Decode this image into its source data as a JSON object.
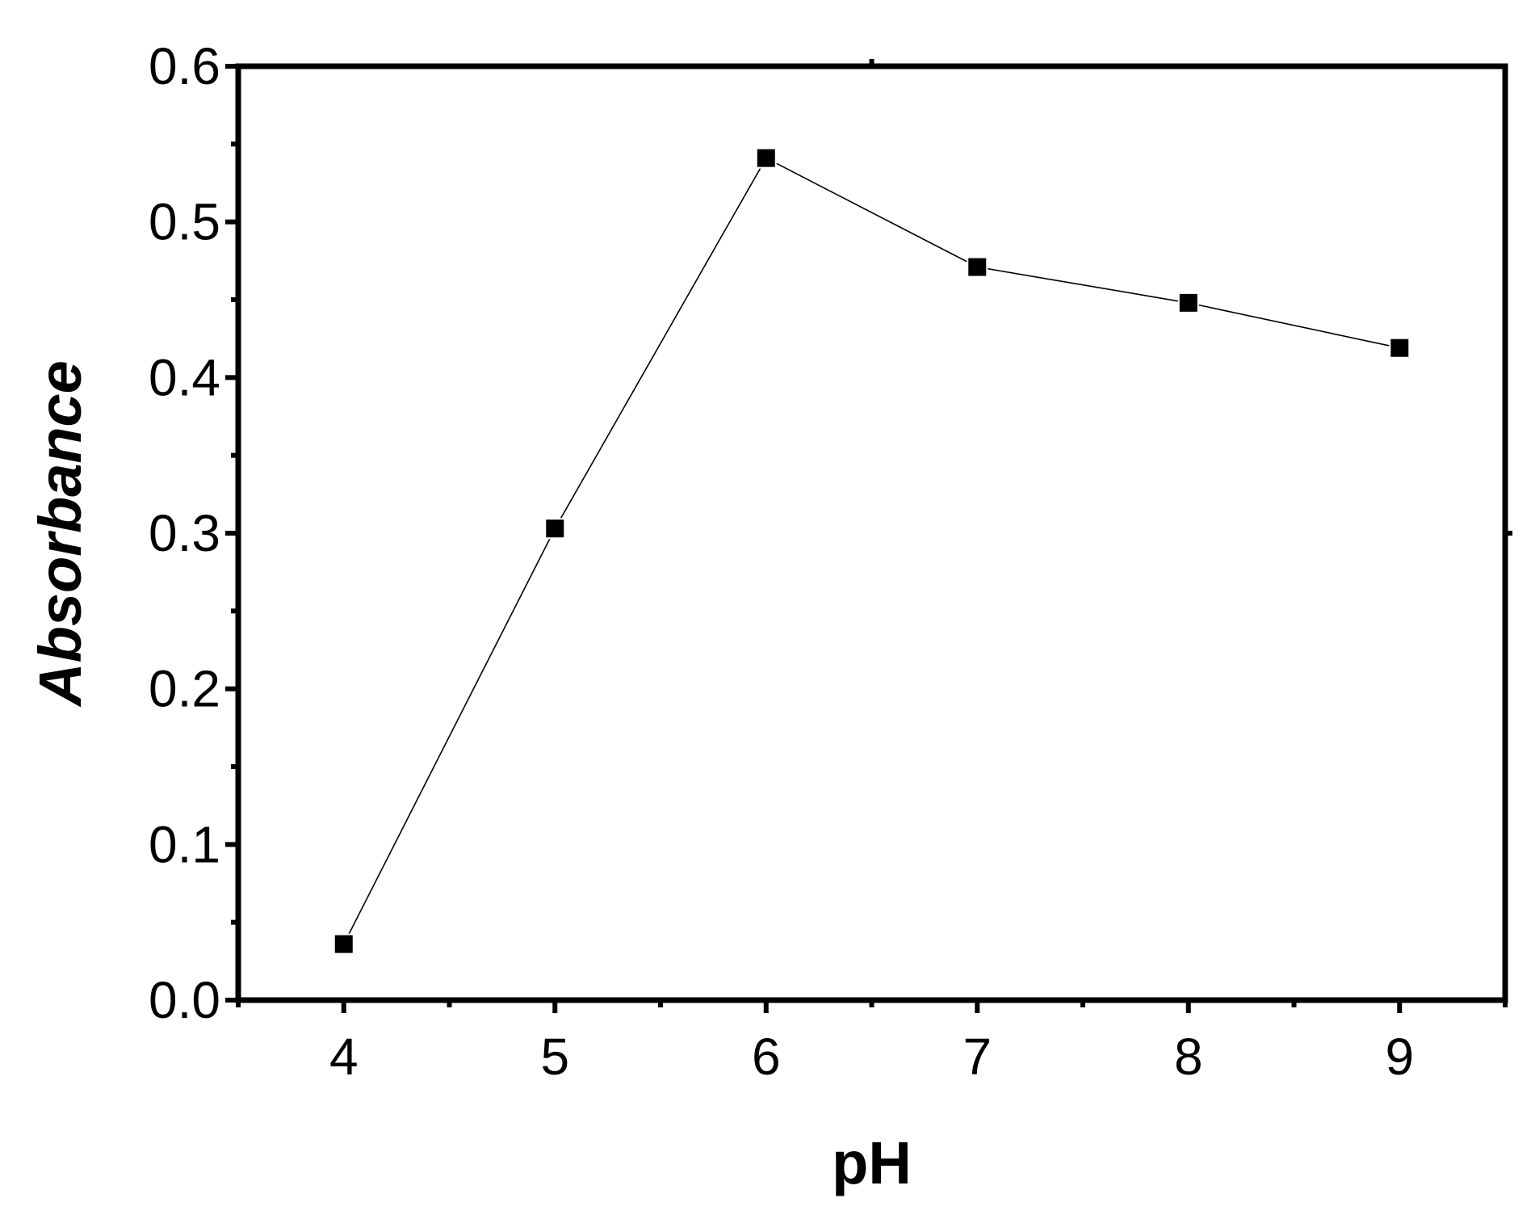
{
  "chart_data": {
    "type": "line",
    "title": "",
    "xlabel": "pH",
    "ylabel": "Absorbance",
    "x": [
      4,
      5,
      6,
      7,
      8,
      9
    ],
    "series": [
      {
        "values": [
          0.036,
          0.303,
          0.541,
          0.471,
          0.448,
          0.419
        ],
        "marker": "filled-square",
        "color": "#000000"
      }
    ],
    "xlim": [
      3.5,
      9.5
    ],
    "ylim": [
      0.0,
      0.6
    ],
    "xticks": [
      "4",
      "5",
      "6",
      "7",
      "8",
      "9"
    ],
    "yticks": [
      "0.0",
      "0.1",
      "0.2",
      "0.3",
      "0.4",
      "0.5",
      "0.6"
    ],
    "grid": false,
    "legend": "none"
  }
}
